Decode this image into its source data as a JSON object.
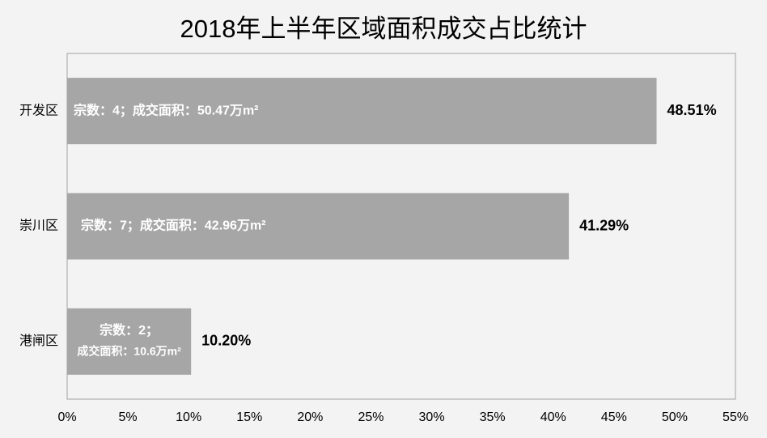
{
  "chart_data": {
    "type": "bar",
    "orientation": "horizontal",
    "title": "2018年上半年区域面积成交占比统计",
    "categories": [
      "开发区",
      "崇川区",
      "港闸区"
    ],
    "values": [
      48.51,
      41.29,
      10.2
    ],
    "value_labels": [
      "48.51%",
      "41.29%",
      "10.20%"
    ],
    "bar_annotations": [
      [
        "宗数：4；成交面积：50.47万m²"
      ],
      [
        "宗数：7；成交面积：42.96万m²"
      ],
      [
        "宗数：2；",
        "成交面积：10.6万m²"
      ]
    ],
    "color": "#a6a6a6",
    "xlim": [
      0,
      55
    ],
    "xticks": [
      {
        "value": 0,
        "label": "0%"
      },
      {
        "value": 5,
        "label": "5%"
      },
      {
        "value": 10,
        "label": "10%"
      },
      {
        "value": 15,
        "label": "15%"
      },
      {
        "value": 20,
        "label": "20%"
      },
      {
        "value": 25,
        "label": "25%"
      },
      {
        "value": 30,
        "label": "30%"
      },
      {
        "value": 35,
        "label": "35%"
      },
      {
        "value": 40,
        "label": "40%"
      },
      {
        "value": 45,
        "label": "45%"
      },
      {
        "value": 50,
        "label": "50%"
      },
      {
        "value": 55,
        "label": "55%"
      }
    ],
    "grid": false
  }
}
